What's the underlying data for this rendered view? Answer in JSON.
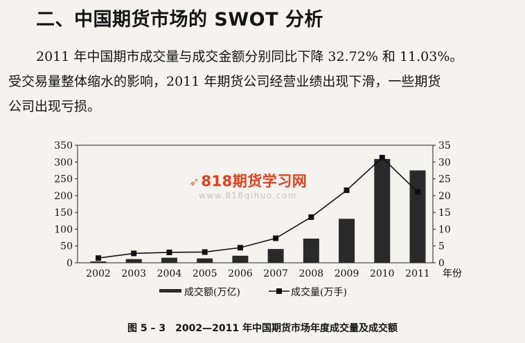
{
  "heading": "二、中国期货市场的 SWOT 分析",
  "paragraph": {
    "line1": "2011 年中国期市成交量与成交金额分别同比下降 32.72% 和 11.03%。",
    "line2": "受交易量整体缩水的影响，2011 年期货公司经营业绩出现下滑，一些期货",
    "line3": "公司出现亏损。"
  },
  "watermark": {
    "logo": "818期货学习网",
    "url": "www.818qihuo.com"
  },
  "caption": {
    "figure_number": "图 5 – 3",
    "title": "2002—2011 年中国期货市场年度成交量及成交额"
  },
  "chart_data": {
    "type": "bar",
    "categories": [
      "2002",
      "2003",
      "2004",
      "2005",
      "2006",
      "2007",
      "2008",
      "2009",
      "2010",
      "2011"
    ],
    "x_unit_label": "年份",
    "series": [
      {
        "name": "成交额(万亿)",
        "type": "bar",
        "axis": "left",
        "color": "#2a2a2a",
        "values": [
          4,
          11,
          15,
          13,
          21,
          41,
          72,
          131,
          309,
          275
        ]
      },
      {
        "name": "成交量(万手)",
        "type": "line",
        "axis": "right",
        "color": "#111111",
        "values": [
          1.4,
          2.8,
          3.1,
          3.2,
          4.5,
          7.3,
          13.6,
          21.6,
          31.3,
          21.1
        ]
      }
    ],
    "y_left": {
      "min": 0,
      "max": 350,
      "ticks": [
        0,
        50,
        100,
        150,
        200,
        250,
        300,
        350
      ]
    },
    "y_right": {
      "min": 0,
      "max": 35,
      "ticks": [
        0,
        5,
        10,
        15,
        20,
        25,
        30,
        35
      ]
    },
    "grid": false,
    "legend_position": "bottom"
  }
}
